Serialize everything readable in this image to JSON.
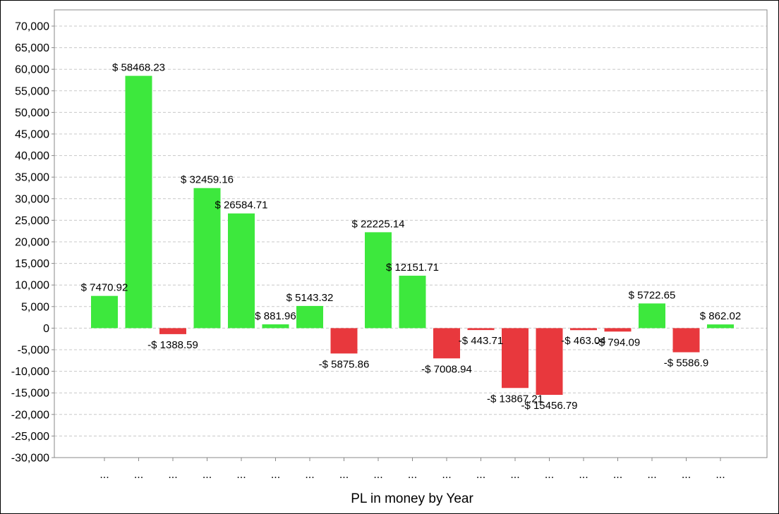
{
  "chart_data": {
    "type": "bar",
    "title": "",
    "xlabel": "PL in money by Year",
    "ylabel": "",
    "categories": [
      "...",
      "...",
      "...",
      "...",
      "...",
      "...",
      "...",
      "...",
      "...",
      "...",
      "...",
      "...",
      "...",
      "...",
      "...",
      "...",
      "...",
      "...",
      "..."
    ],
    "values": [
      7470.92,
      58468.23,
      -1388.59,
      32459.16,
      26584.71,
      881.96,
      5143.32,
      -5875.86,
      22225.14,
      12151.71,
      -7008.94,
      -443.71,
      -13867.21,
      -15456.79,
      -463.04,
      -794.09,
      5722.65,
      -5586.9,
      862.02
    ],
    "labels": [
      "$ 7470.92",
      "$ 58468.23",
      "-$ 1388.59",
      "$ 32459.16",
      "$ 26584.71",
      "$ 881.96",
      "$ 5143.32",
      "-$ 5875.86",
      "$ 22225.14",
      "$ 12151.71",
      "-$ 7008.94",
      "-$ 443.71",
      "-$ 13867.21",
      "-$ 15456.79",
      "-$ 463.04",
      "-$ 794.09",
      "$ 5722.65",
      "-$ 5586.9",
      "$ 862.02"
    ],
    "ylim": [
      -30000,
      70000
    ],
    "yticks": [
      "70,000",
      "65,000",
      "60,000",
      "55,000",
      "50,000",
      "45,000",
      "40,000",
      "35,000",
      "30,000",
      "25,000",
      "20,000",
      "15,000",
      "10,000",
      "5,000",
      "0",
      "-5,000",
      "-10,000",
      "-15,000",
      "-20,000",
      "-25,000",
      "-30,000"
    ],
    "ytick_values": [
      70000,
      65000,
      60000,
      55000,
      50000,
      45000,
      40000,
      35000,
      30000,
      25000,
      20000,
      15000,
      10000,
      5000,
      0,
      -5000,
      -10000,
      -15000,
      -20000,
      -25000,
      -30000
    ],
    "grid": true,
    "colors": {
      "positive": "#3de83d",
      "negative": "#e8383d",
      "grid": "#c8c8c8",
      "axis": "#888888"
    }
  }
}
